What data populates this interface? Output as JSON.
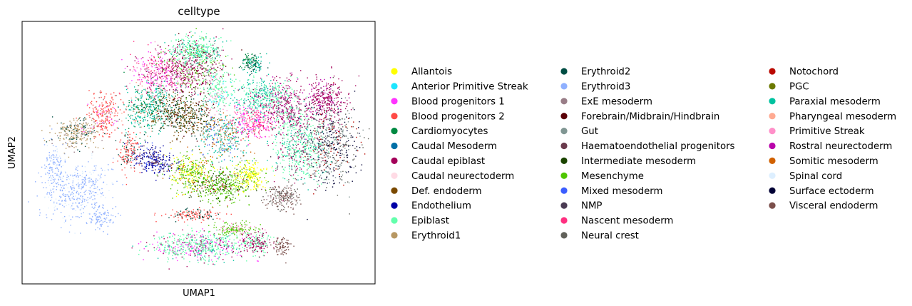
{
  "chart_data": {
    "type": "scatter",
    "title": "celltype",
    "xlabel": "UMAP1",
    "ylabel": "UMAP2",
    "grid": false,
    "ticks": false,
    "legend_placement": "right",
    "legend_columns": 3,
    "series": [
      {
        "name": "Allantois",
        "color": "#ffff00"
      },
      {
        "name": "Anterior Primitive Streak",
        "color": "#1ce6ff"
      },
      {
        "name": "Blood progenitors 1",
        "color": "#ff34ff"
      },
      {
        "name": "Blood progenitors 2",
        "color": "#ff4a46"
      },
      {
        "name": "Cardiomyocytes",
        "color": "#008941"
      },
      {
        "name": "Caudal Mesoderm",
        "color": "#006fa6"
      },
      {
        "name": "Caudal epiblast",
        "color": "#a30059"
      },
      {
        "name": "Caudal neurectoderm",
        "color": "#ffdbe5"
      },
      {
        "name": "Def. endoderm",
        "color": "#7a4900"
      },
      {
        "name": "Endothelium",
        "color": "#0000a6"
      },
      {
        "name": "Epiblast",
        "color": "#63ffac"
      },
      {
        "name": "Erythroid1",
        "color": "#b79762"
      },
      {
        "name": "Erythroid2",
        "color": "#004d43"
      },
      {
        "name": "Erythroid3",
        "color": "#8fb0ff"
      },
      {
        "name": "ExE mesoderm",
        "color": "#997d87"
      },
      {
        "name": "Forebrain/Midbrain/Hindbrain",
        "color": "#5a0007"
      },
      {
        "name": "Gut",
        "color": "#809693"
      },
      {
        "name": "Haematoendothelial progenitors",
        "color": "#6a3a4c"
      },
      {
        "name": "Intermediate mesoderm",
        "color": "#1b4400"
      },
      {
        "name": "Mesenchyme",
        "color": "#4fc601"
      },
      {
        "name": "Mixed mesoderm",
        "color": "#3b5dff"
      },
      {
        "name": "NMP",
        "color": "#4a3b53"
      },
      {
        "name": "Nascent mesoderm",
        "color": "#ff2f80"
      },
      {
        "name": "Neural crest",
        "color": "#61615a"
      },
      {
        "name": "Notochord",
        "color": "#ba0900"
      },
      {
        "name": "PGC",
        "color": "#6b7900"
      },
      {
        "name": "Paraxial mesoderm",
        "color": "#00c2a0"
      },
      {
        "name": "Pharyngeal mesoderm",
        "color": "#ffaa92"
      },
      {
        "name": "Primitive Streak",
        "color": "#ff90c9"
      },
      {
        "name": "Rostral neurectoderm",
        "color": "#b903aa"
      },
      {
        "name": "Somitic mesoderm",
        "color": "#d16100"
      },
      {
        "name": "Spinal cord",
        "color": "#ddefff"
      },
      {
        "name": "Surface ectoderm",
        "color": "#000035"
      },
      {
        "name": "Visceral endoderm",
        "color": "#7b4f4b"
      }
    ]
  }
}
